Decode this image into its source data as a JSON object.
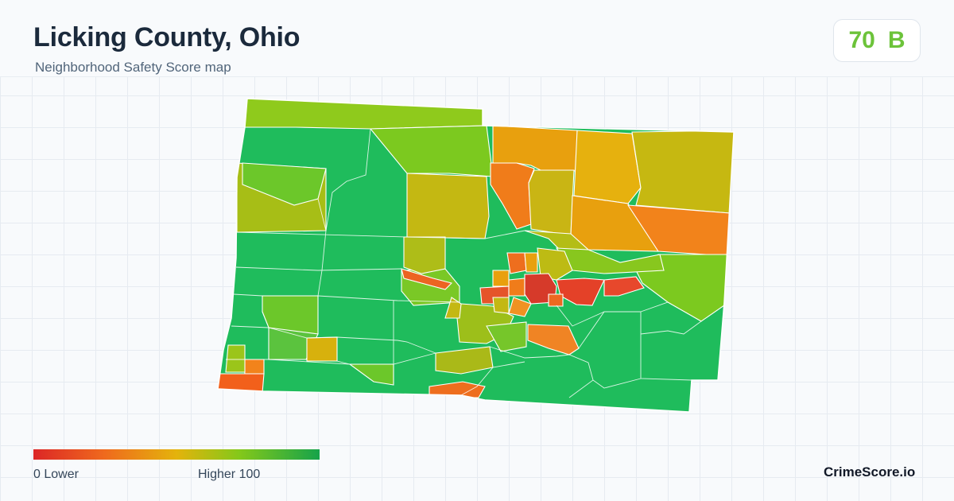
{
  "header": {
    "title": "Licking County, Ohio",
    "subtitle": "Neighborhood Safety Score map"
  },
  "score_badge": {
    "score": "70",
    "grade": "B",
    "color": "#6cc33a"
  },
  "map": {
    "region": "Licking County, Ohio",
    "outline_color": "#ffffff",
    "fill_colors": {
      "high": "#1fbc5c",
      "mid_high": "#7cc91f",
      "mid": "#c4b812",
      "mid_low": "#e8a00e",
      "low": "#f07c1a",
      "lowest": "#de3528"
    }
  },
  "legend": {
    "left_label": "0  Lower",
    "right_label": "Higher  100",
    "colors": [
      "#dc2626",
      "#ef6a1d",
      "#e4b30c",
      "#84c81a",
      "#16a34a"
    ]
  },
  "branding": {
    "name": "CrimeScore.io"
  }
}
